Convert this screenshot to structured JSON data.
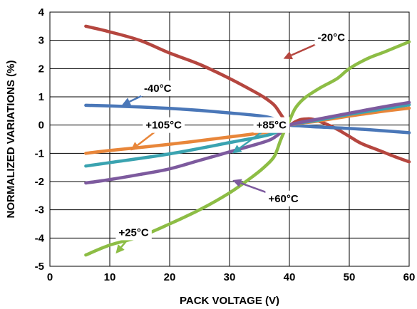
{
  "chart_data": {
    "type": "line",
    "title": "",
    "xlabel": "PACK VOLTAGE (V)",
    "ylabel": "NORMALIZED VARIATIONS (%)",
    "xlim": [
      0,
      60
    ],
    "ylim": [
      -5,
      4
    ],
    "x_ticks": [
      "0",
      "10",
      "20",
      "30",
      "40",
      "50",
      "60"
    ],
    "y_ticks": [
      "4",
      "3",
      "2",
      "1",
      "0",
      "-1",
      "-2",
      "-3",
      "-4",
      "-5"
    ],
    "grid": true,
    "legend": "none",
    "series": [
      {
        "name": "-20°C",
        "color": "#b5463f",
        "x": [
          6,
          10,
          15,
          20,
          25,
          30,
          34,
          36,
          37.5,
          38.5,
          39.3,
          40.0,
          41,
          42,
          43,
          44,
          46,
          48,
          50,
          52,
          55,
          58,
          60
        ],
        "y": [
          3.5,
          3.3,
          3.0,
          2.55,
          2.15,
          1.65,
          1.2,
          0.95,
          0.7,
          0.4,
          0.15,
          0.0,
          0.12,
          0.2,
          0.22,
          0.2,
          0.05,
          -0.15,
          -0.4,
          -0.65,
          -0.9,
          -1.15,
          -1.3
        ]
      },
      {
        "name": "-40°C",
        "color": "#4a77b8",
        "x": [
          6,
          10,
          15,
          20,
          25,
          30,
          35,
          37,
          38.5,
          40,
          42,
          45,
          50,
          55,
          60
        ],
        "y": [
          0.7,
          0.68,
          0.64,
          0.59,
          0.52,
          0.43,
          0.33,
          0.25,
          0.12,
          0.0,
          -0.03,
          -0.07,
          -0.12,
          -0.19,
          -0.27
        ]
      },
      {
        "name": "+105°C",
        "color": "#e8863a",
        "x": [
          6,
          10,
          20,
          30,
          37,
          40,
          45,
          50,
          55,
          60
        ],
        "y": [
          -1.0,
          -0.9,
          -0.68,
          -0.42,
          -0.22,
          0.0,
          0.15,
          0.32,
          0.47,
          0.6
        ]
      },
      {
        "name": "+85°C",
        "color": "#3aa3b0",
        "x": [
          6,
          10,
          20,
          30,
          37,
          40,
          45,
          50,
          55,
          60
        ],
        "y": [
          -1.45,
          -1.33,
          -1.02,
          -0.62,
          -0.32,
          0.0,
          0.18,
          0.38,
          0.55,
          0.72
        ]
      },
      {
        "name": "+60°C",
        "color": "#7d5a9e",
        "x": [
          6,
          10,
          15,
          20,
          25,
          30,
          35,
          37,
          38.5,
          40,
          45,
          50,
          55,
          60
        ],
        "y": [
          -2.05,
          -1.93,
          -1.75,
          -1.55,
          -1.25,
          -0.95,
          -0.65,
          -0.5,
          -0.28,
          0.0,
          0.22,
          0.42,
          0.62,
          0.8
        ]
      },
      {
        "name": "+25°C",
        "color": "#8dbd45",
        "x": [
          6,
          10,
          15,
          20,
          25,
          30,
          34,
          36,
          37.5,
          38.5,
          39.3,
          40,
          41,
          42.5,
          45,
          48,
          50,
          53,
          56,
          60
        ],
        "y": [
          -4.6,
          -4.25,
          -3.95,
          -3.5,
          -3.0,
          -2.4,
          -1.8,
          -1.45,
          -1.1,
          -0.55,
          -0.15,
          0.15,
          0.6,
          0.95,
          1.3,
          1.65,
          2.0,
          2.35,
          2.6,
          2.95
        ]
      }
    ],
    "annotations": [
      {
        "text": "-20°C",
        "series": "-20°C",
        "text_xy": [
          47,
          3.1
        ],
        "arrow_to": [
          39,
          2.35
        ],
        "color": "#b5463f"
      },
      {
        "text": "-40°C",
        "series": "-40°C",
        "text_xy": [
          18,
          1.3
        ],
        "arrow_to": [
          12,
          0.7
        ],
        "color": "#4a77b8"
      },
      {
        "text": "+105°C",
        "series": "+105°C",
        "text_xy": [
          19,
          0.0
        ],
        "arrow_to": [
          13.5,
          -0.9
        ],
        "color": "#e8863a"
      },
      {
        "text": "+85°C",
        "series": "+85°C",
        "text_xy": [
          37,
          0.0
        ],
        "arrow_to": [
          30.5,
          -1.0
        ],
        "color": "#3aa3b0"
      },
      {
        "text": "+60°C",
        "series": "+60°C",
        "text_xy": [
          39,
          -2.6
        ],
        "arrow_to": [
          30.5,
          -1.95
        ],
        "color": "#7d5a9e"
      },
      {
        "text": "+25°C",
        "series": "+25°C",
        "text_xy": [
          14,
          -3.8
        ],
        "arrow_to": [
          11,
          -4.55
        ],
        "color": "#8dbd45"
      }
    ]
  }
}
